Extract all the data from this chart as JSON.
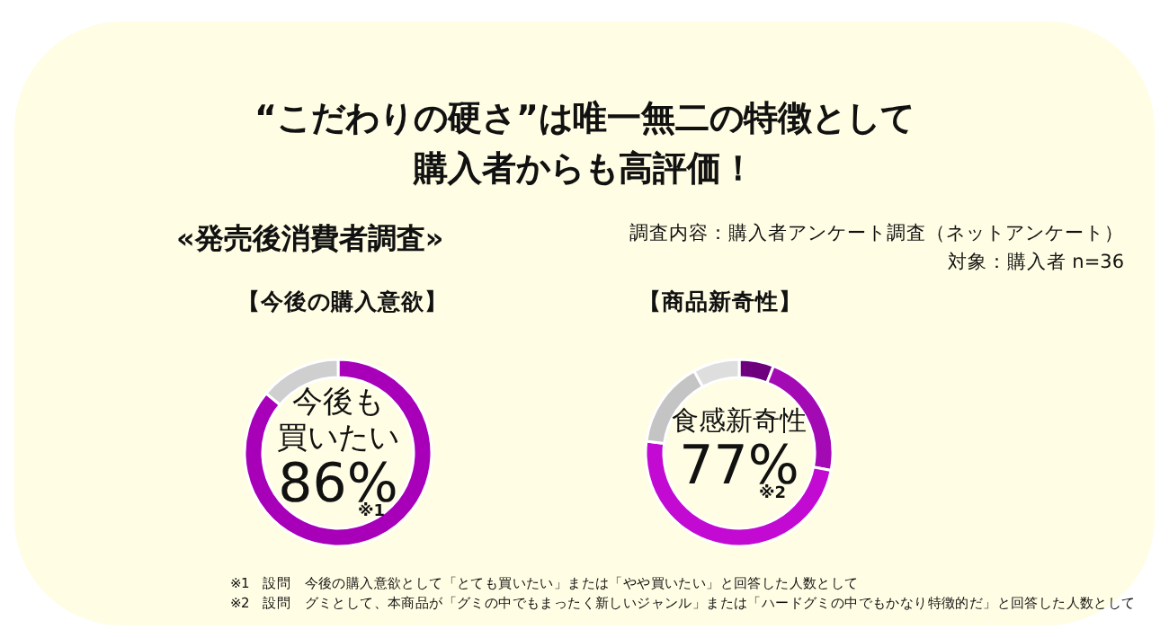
{
  "chart_data": [
    {
      "type": "other",
      "title": "“こだわりの硬さ”は唯一無二の特徴として購入者からも高評価！",
      "subtitle": "«発売後消費者調査»",
      "annotations": [
        "調査内容：購入者アンケート調査（ネットアンケート）",
        "対象：購入者 n=36",
        "※1　設問　今後の購入意欲として「とても買いたい」または「やや買いたい」と回答した人数として",
        "※2　設問　グミとして、本商品が「グミの中でもまったく新しいジャンル」または「ハードグミの中でもかなり特徴的だ」と回答した人数として"
      ]
    },
    {
      "type": "donut",
      "title": "【今後の購入意欲】",
      "categories": [
        null,
        null
      ],
      "values": [
        86,
        14
      ],
      "colors": [
        "#a800b8",
        "#cfcfcf"
      ],
      "annotations": [
        "今後も",
        "買いたい",
        "86%",
        "※1"
      ]
    },
    {
      "type": "donut",
      "title": "【商品新奇性】",
      "categories": [
        null,
        null,
        null,
        null,
        null
      ],
      "values": [
        6,
        22,
        49,
        15,
        8
      ],
      "colors": [
        "#6e007e",
        "#a40ab4",
        "#c20ad2",
        "#c4c4c4",
        "#dedede"
      ],
      "annotations": [
        "食感新奇性",
        "77%",
        "※2"
      ]
    }
  ]
}
